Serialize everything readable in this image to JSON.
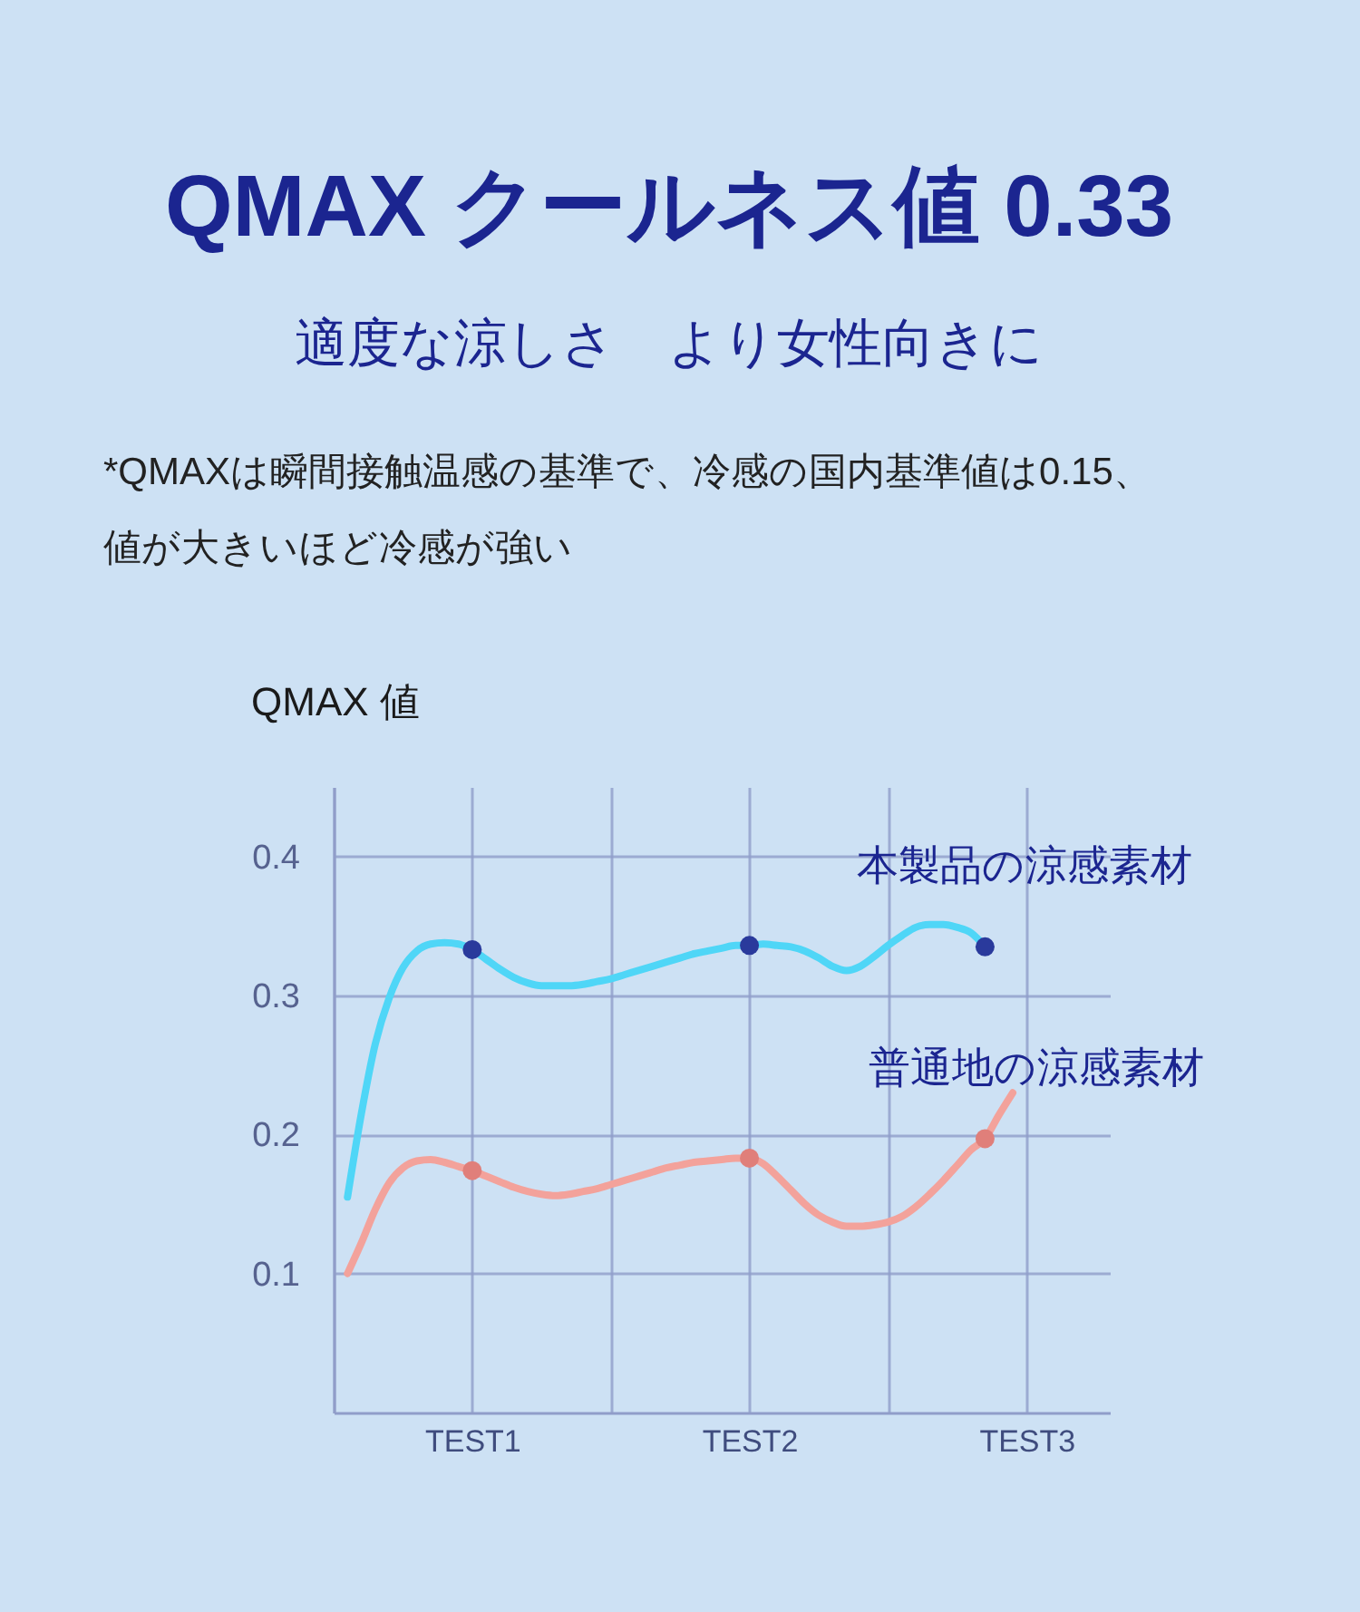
{
  "chart_data": {
    "type": "line",
    "title": "QMAX クールネス値 0.33",
    "subtitle": "適度な涼しさ　より女性向きに",
    "annotations": [
      "*QMAXは瞬間接触温感の基準で、冷感の国内基準値は0.15、",
      "値が大きいほど冷感が強い"
    ],
    "ylabel": "QMAX 値",
    "categories": [
      null,
      null,
      null,
      null,
      null,
      null,
      null,
      null,
      null,
      null,
      "TEST1",
      null,
      null,
      null,
      null,
      null,
      null,
      null,
      null,
      null,
      null,
      null,
      null,
      null,
      null,
      null,
      null,
      null,
      null,
      null,
      "TEST2",
      null,
      null,
      null,
      null,
      null,
      null,
      null,
      null,
      null,
      null,
      null,
      null,
      null,
      null,
      null,
      null,
      null,
      null,
      null,
      "TEST3",
      null,
      null,
      null,
      null,
      null,
      null
    ],
    "ylim": [
      0,
      0.45
    ],
    "yticks": [
      0.1,
      0.2,
      0.3,
      0.4
    ],
    "grid": true,
    "line_style": "solid",
    "series": [
      {
        "name": "本製品の涼感素材",
        "color": "#4fd6f7",
        "values": [
          null,
          0.155,
          0.215,
          0.265,
          0.298,
          0.32,
          0.332,
          0.337,
          0.338,
          0.337,
          0.333,
          0.326,
          0.319,
          0.313,
          0.309,
          0.307,
          0.307,
          0.307,
          0.308,
          0.31,
          0.312,
          0.315,
          0.318,
          0.321,
          0.324,
          0.327,
          0.33,
          0.332,
          0.334,
          0.336,
          0.336,
          0.337,
          0.336,
          0.335,
          0.332,
          0.327,
          0.321,
          0.318,
          0.321,
          0.328,
          0.336,
          0.343,
          0.349,
          0.351,
          0.351,
          0.349,
          0.345,
          0.335,
          null,
          null,
          null,
          null,
          null,
          null,
          null,
          null,
          null
        ]
      },
      {
        "name": "普通地の涼感素材",
        "color": "#f3a29b",
        "values": [
          null,
          0.1,
          0.122,
          0.146,
          0.165,
          0.176,
          0.181,
          0.182,
          0.18,
          0.177,
          0.174,
          0.17,
          0.166,
          0.162,
          0.159,
          0.157,
          0.156,
          0.157,
          0.159,
          0.161,
          0.164,
          0.167,
          0.17,
          0.173,
          0.176,
          0.178,
          0.18,
          0.181,
          0.182,
          0.183,
          0.183,
          0.179,
          0.17,
          0.16,
          0.15,
          0.142,
          0.137,
          0.134,
          0.134,
          0.135,
          0.137,
          0.141,
          0.148,
          0.157,
          0.167,
          0.178,
          0.189,
          0.197,
          0.214,
          0.23,
          null,
          null,
          null,
          null,
          null,
          null,
          null
        ]
      },
      {
        "type": "scatter",
        "marker": "circle",
        "color": "#2a3a9c",
        "values": [
          null,
          null,
          null,
          null,
          null,
          null,
          null,
          null,
          null,
          null,
          0.333,
          null,
          null,
          null,
          null,
          null,
          null,
          null,
          null,
          null,
          null,
          null,
          null,
          null,
          null,
          null,
          null,
          null,
          null,
          null,
          0.336,
          null,
          null,
          null,
          null,
          null,
          null,
          null,
          null,
          null,
          null,
          null,
          null,
          null,
          null,
          null,
          null,
          0.335,
          null,
          null,
          null,
          null,
          null,
          null,
          null,
          null,
          null
        ]
      },
      {
        "type": "scatter",
        "marker": "circle",
        "color": "#e07f7a",
        "values": [
          null,
          null,
          null,
          null,
          null,
          null,
          null,
          null,
          null,
          null,
          0.174,
          null,
          null,
          null,
          null,
          null,
          null,
          null,
          null,
          null,
          null,
          null,
          null,
          null,
          null,
          null,
          null,
          null,
          null,
          null,
          0.183,
          null,
          null,
          null,
          null,
          null,
          null,
          null,
          null,
          null,
          null,
          null,
          null,
          null,
          null,
          null,
          null,
          0.197,
          null,
          null,
          null,
          null,
          null,
          null,
          null,
          null,
          null
        ]
      }
    ]
  }
}
